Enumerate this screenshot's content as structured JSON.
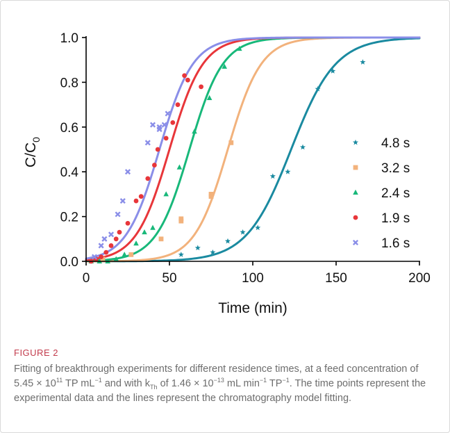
{
  "chart_data": {
    "type": "scatter",
    "title": "",
    "xlabel": "Time (min)",
    "ylabel": "C/C",
    "ylabel_sub": "0",
    "xlim": [
      0,
      200
    ],
    "ylim": [
      0,
      1.0
    ],
    "xticks": [
      0,
      50,
      100,
      150,
      200
    ],
    "yticks": [
      0.0,
      0.2,
      0.4,
      0.6,
      0.8,
      1.0
    ],
    "xtick_labels": [
      "0",
      "50",
      "100",
      "150",
      "200"
    ],
    "ytick_labels": [
      "0.0",
      "0.2",
      "0.4",
      "0.6",
      "0.8",
      "1.0"
    ],
    "grid": false,
    "legend_position": "bottom-right",
    "series": [
      {
        "name": "4.8 s",
        "color": "#1a8aa0",
        "marker": "star",
        "fit": {
          "t50": 123,
          "k": 0.075
        },
        "points": [
          [
            57,
            0.03
          ],
          [
            67,
            0.06
          ],
          [
            76,
            0.04
          ],
          [
            85,
            0.09
          ],
          [
            94,
            0.13
          ],
          [
            103,
            0.15
          ],
          [
            112,
            0.38
          ],
          [
            121,
            0.4
          ],
          [
            130,
            0.51
          ],
          [
            139,
            0.77
          ],
          [
            148,
            0.85
          ],
          [
            166,
            0.89
          ]
        ]
      },
      {
        "name": "3.2 s",
        "color": "#f2b27c",
        "marker": "square",
        "fit": {
          "t50": 85,
          "k": 0.1
        },
        "points": [
          [
            10,
            0.01
          ],
          [
            27,
            0.03
          ],
          [
            45,
            0.1
          ],
          [
            57,
            0.19
          ],
          [
            57,
            0.18
          ],
          [
            75,
            0.3
          ],
          [
            75,
            0.29
          ],
          [
            87,
            0.53
          ]
        ]
      },
      {
        "name": "2.4 s",
        "color": "#18b87a",
        "marker": "triangle",
        "fit": {
          "t50": 62,
          "k": 0.1
        },
        "points": [
          [
            3,
            0.0
          ],
          [
            8,
            0.0
          ],
          [
            13,
            0.0
          ],
          [
            18,
            0.01
          ],
          [
            23,
            0.03
          ],
          [
            30,
            0.08
          ],
          [
            35,
            0.13
          ],
          [
            40,
            0.15
          ],
          [
            48,
            0.3
          ],
          [
            56,
            0.42
          ],
          [
            65,
            0.58
          ],
          [
            74,
            0.73
          ],
          [
            83,
            0.87
          ],
          [
            92,
            0.95
          ]
        ]
      },
      {
        "name": "1.9 s",
        "color": "#e8363a",
        "marker": "circle",
        "fit": {
          "t50": 50,
          "k": 0.1
        },
        "points": [
          [
            3,
            0.0
          ],
          [
            6,
            0.01
          ],
          [
            9,
            0.02
          ],
          [
            12,
            0.04
          ],
          [
            15,
            0.07
          ],
          [
            18,
            0.1
          ],
          [
            20,
            0.13
          ],
          [
            25,
            0.17
          ],
          [
            30,
            0.27
          ],
          [
            33,
            0.29
          ],
          [
            37,
            0.37
          ],
          [
            41,
            0.43
          ],
          [
            48,
            0.55
          ],
          [
            52,
            0.62
          ],
          [
            55,
            0.7
          ],
          [
            61,
            0.81
          ],
          [
            69,
            0.78
          ],
          [
            59,
            0.83
          ],
          [
            43,
            0.5
          ]
        ]
      },
      {
        "name": "1.6 s",
        "color": "#8a8ee8",
        "marker": "x",
        "fit": {
          "t50": 44,
          "k": 0.1
        },
        "points": [
          [
            5,
            0.02
          ],
          [
            9,
            0.07
          ],
          [
            11,
            0.1
          ],
          [
            15,
            0.12
          ],
          [
            19,
            0.21
          ],
          [
            22,
            0.27
          ],
          [
            25,
            0.4
          ],
          [
            37,
            0.53
          ],
          [
            40,
            0.61
          ],
          [
            44,
            0.59
          ],
          [
            47,
            0.61
          ],
          [
            49,
            0.66
          ],
          [
            44,
            0.6
          ]
        ]
      }
    ]
  },
  "figure": {
    "label": "FIGURE 2",
    "caption": {
      "part1": "Fitting of breakthrough experiments for different residence times, at a feed concentration of 5.45 × 10",
      "sup1": "11",
      "part2": " TP mL",
      "sup2": "−1",
      "part3": " and with k",
      "sub1": "Th",
      "part4": " of 1.46 × 10",
      "sup3": "−13",
      "part5": " mL min",
      "sup4": "−1",
      "part6": " TP",
      "sup5": "−1",
      "part7": ". The time points represent the experimental data and the lines represent the chromatography model fitting."
    }
  }
}
